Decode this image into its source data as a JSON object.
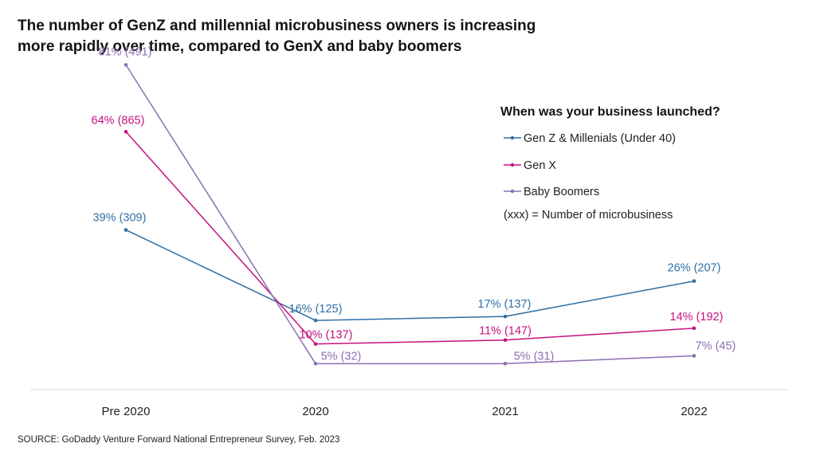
{
  "title": {
    "line1": "The number of GenZ and millennial microbusiness owners is increasing",
    "line2": "more rapidly over time, compared to GenX and baby boomers"
  },
  "source": "SOURCE: GoDaddy Venture Forward National Entrepreneur Survey, Feb. 2023",
  "chart_data": {
    "type": "line",
    "title": "The number of GenZ and millennial microbusiness owners is increasing more rapidly over time, compared to GenX and baby boomers",
    "xlabel": "",
    "ylabel": "",
    "categories": [
      "Pre 2020",
      "2020",
      "2021",
      "2022"
    ],
    "ylim": [
      0,
      90
    ],
    "grid": false,
    "legend_title": "When was your business launched?",
    "legend_note": "(xxx) = Number of microbusiness",
    "legend_position": "top-right",
    "series": [
      {
        "name": "Gen Z & Millenials (Under 40)",
        "color": "#2e6fa6",
        "values": [
          39,
          16,
          17,
          26
        ],
        "labels": [
          "39% (309)",
          "16% (125)",
          "17% (137)",
          "26% (207)"
        ]
      },
      {
        "name": "Gen X",
        "color": "#c5127e",
        "values": [
          64,
          10,
          11,
          14
        ],
        "labels": [
          "64% (865)",
          "10% (137)",
          "11% (147)",
          "14% (192)"
        ]
      },
      {
        "name": "Baby Boomers",
        "color": "#8b6fb3",
        "values": [
          81,
          5,
          5,
          7
        ],
        "labels": [
          "81% (491)",
          "5% (32)",
          "5% (31)",
          "7% (45)"
        ]
      }
    ]
  }
}
